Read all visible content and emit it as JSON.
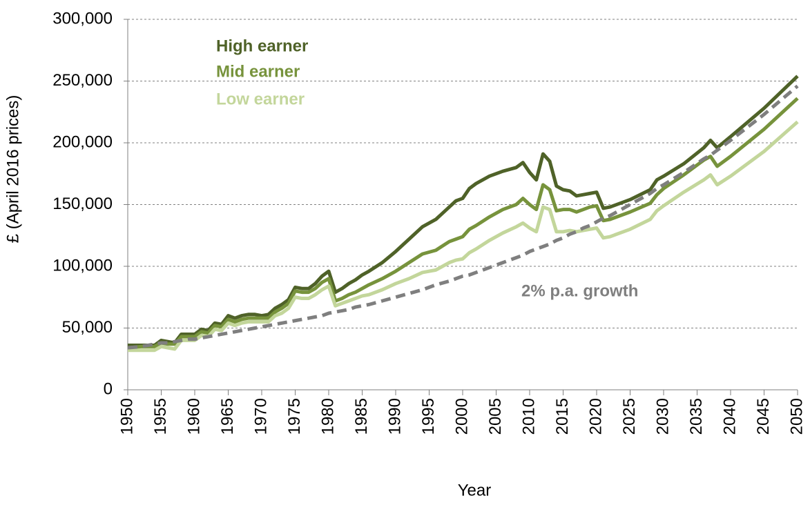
{
  "chart_data": {
    "type": "line",
    "x_label": "Year",
    "y_label": "£ (April 2016 prices)",
    "x": [
      1950,
      1952,
      1954,
      1955,
      1956,
      1957,
      1958,
      1959,
      1960,
      1961,
      1962,
      1963,
      1964,
      1965,
      1966,
      1967,
      1968,
      1969,
      1970,
      1971,
      1972,
      1973,
      1974,
      1975,
      1976,
      1977,
      1978,
      1979,
      1980,
      1981,
      1982,
      1983,
      1984,
      1985,
      1986,
      1988,
      1990,
      1992,
      1994,
      1996,
      1998,
      1999,
      2000,
      2001,
      2002,
      2004,
      2006,
      2008,
      2009,
      2010,
      2011,
      2012,
      2013,
      2014,
      2015,
      2016,
      2017,
      2018,
      2019,
      2020,
      2021,
      2022,
      2025,
      2028,
      2029,
      2030,
      2033,
      2036,
      2037,
      2038,
      2040,
      2045,
      2050
    ],
    "series": [
      {
        "name": "High earner",
        "color": "#4f6228",
        "dashed": false,
        "values": [
          36000,
          36000,
          36000,
          40000,
          39000,
          38000,
          45000,
          45000,
          45000,
          49000,
          48000,
          54000,
          53000,
          60000,
          58000,
          60000,
          61000,
          61000,
          60000,
          61000,
          66000,
          69000,
          73000,
          83000,
          82000,
          82000,
          86000,
          92000,
          96000,
          79000,
          82000,
          86000,
          89000,
          93000,
          96000,
          103000,
          112000,
          122000,
          132000,
          138000,
          148000,
          153000,
          155000,
          163000,
          167000,
          173000,
          177000,
          180000,
          184000,
          176000,
          170000,
          191000,
          185000,
          165000,
          162000,
          161000,
          157000,
          158000,
          159000,
          160000,
          147000,
          148000,
          154000,
          162000,
          170000,
          173000,
          183000,
          196000,
          202000,
          196000,
          205000,
          228000,
          254000
        ]
      },
      {
        "name": "Mid earner",
        "color": "#77933c",
        "dashed": false,
        "values": [
          34000,
          35000,
          35000,
          38000,
          37000,
          37000,
          43000,
          43000,
          43000,
          47000,
          46000,
          52000,
          51000,
          57000,
          55000,
          57000,
          58000,
          58000,
          58000,
          58000,
          63000,
          66000,
          70000,
          80000,
          79000,
          79000,
          82000,
          87000,
          90000,
          72000,
          74000,
          77000,
          79000,
          82000,
          85000,
          90000,
          96000,
          103000,
          110000,
          113000,
          120000,
          122000,
          124000,
          130000,
          133000,
          140000,
          146000,
          150000,
          155000,
          150000,
          146000,
          166000,
          162000,
          145000,
          146000,
          146000,
          144000,
          146000,
          148000,
          149000,
          137000,
          138000,
          144000,
          151000,
          158000,
          163000,
          174000,
          186000,
          189000,
          181000,
          189000,
          211000,
          236000
        ]
      },
      {
        "name": "Low earner",
        "color": "#c3d69b",
        "dashed": false,
        "values": [
          32000,
          32000,
          32000,
          35000,
          34000,
          33000,
          40000,
          40000,
          40000,
          44000,
          43000,
          49000,
          48000,
          54000,
          52000,
          54000,
          55000,
          55000,
          55000,
          55000,
          60000,
          62000,
          66000,
          75000,
          74000,
          74000,
          77000,
          81000,
          84000,
          68000,
          70000,
          72000,
          74000,
          76000,
          77000,
          81000,
          86000,
          90000,
          95000,
          97000,
          103000,
          105000,
          106000,
          111000,
          114000,
          121000,
          127000,
          132000,
          135000,
          131000,
          128000,
          148000,
          146000,
          128000,
          128000,
          129000,
          128000,
          129000,
          130000,
          131000,
          123000,
          124000,
          130000,
          138000,
          145000,
          149000,
          160000,
          170000,
          174000,
          166000,
          173000,
          193000,
          217000
        ]
      },
      {
        "name": "2% p.a. growth",
        "color": "#7f7f7f",
        "dashed": true,
        "values": [
          34000,
          35000,
          37000,
          38000,
          38000,
          39000,
          40000,
          41000,
          41000,
          42000,
          43000,
          44000,
          45000,
          46000,
          47000,
          48000,
          49000,
          50000,
          51000,
          52000,
          53000,
          54000,
          55000,
          56000,
          57000,
          58000,
          59000,
          60000,
          62000,
          63000,
          64000,
          65000,
          67000,
          68000,
          69000,
          72000,
          75000,
          78000,
          81000,
          85000,
          88000,
          90000,
          92000,
          93000,
          95000,
          99000,
          103000,
          107000,
          109000,
          112000,
          114000,
          116000,
          118000,
          121000,
          123000,
          126000,
          128000,
          131000,
          133000,
          136000,
          139000,
          141000,
          150000,
          159000,
          163000,
          166000,
          176000,
          187000,
          190000,
          194000,
          202000,
          223000,
          246000
        ]
      }
    ],
    "xlim": [
      1950,
      2050
    ],
    "xticks": [
      1950,
      1955,
      1960,
      1965,
      1970,
      1975,
      1980,
      1985,
      1990,
      1995,
      2000,
      2005,
      2010,
      2015,
      2020,
      2025,
      2030,
      2035,
      2040,
      2045,
      2050
    ],
    "ylim": [
      0,
      300000
    ],
    "yticks": [
      0,
      {
        "value": 50000,
        "label": "50,000"
      },
      {
        "value": 100000,
        "label": "100,000"
      },
      {
        "value": 150000,
        "label": "150,000"
      },
      {
        "value": 200000,
        "label": "200,000"
      },
      {
        "value": 250000,
        "label": "250,000"
      },
      {
        "value": 300000,
        "label": "300,000"
      }
    ],
    "grid": true
  }
}
